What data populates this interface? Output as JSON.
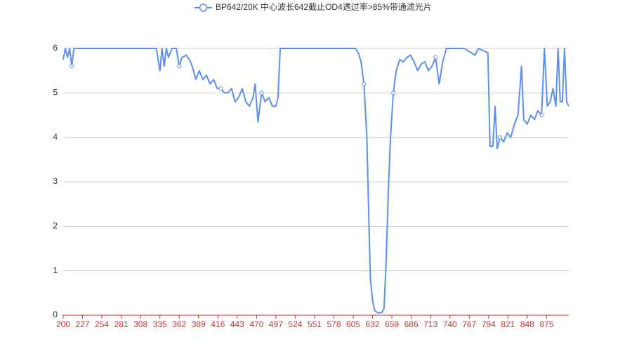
{
  "chart_data": {
    "type": "line",
    "x": [
      200,
      203,
      206,
      209,
      212,
      215,
      220,
      250,
      330,
      335,
      338,
      341,
      344,
      347,
      352,
      358,
      362,
      366,
      372,
      378,
      382,
      385,
      390,
      395,
      400,
      405,
      410,
      415,
      420,
      425,
      430,
      435,
      440,
      445,
      450,
      455,
      460,
      465,
      468,
      472,
      477,
      482,
      487,
      492,
      497,
      500,
      503,
      520,
      560,
      608,
      612,
      616,
      620,
      624,
      627,
      629,
      632,
      635,
      640,
      645,
      648,
      651,
      654,
      657,
      661,
      665,
      670,
      675,
      680,
      685,
      690,
      695,
      700,
      705,
      710,
      715,
      720,
      725,
      730,
      735,
      760,
      775,
      780,
      793,
      796,
      800,
      803,
      806,
      810,
      815,
      820,
      825,
      830,
      835,
      840,
      843,
      848,
      853,
      858,
      863,
      868,
      872,
      876,
      880,
      884,
      888,
      891,
      894,
      897,
      900,
      903,
      906
    ],
    "series": [
      {
        "name": "BP642/20K 中心波长642截止OD4透过率>85%带通滤光片",
        "color": "#5b8ff0",
        "values": [
          5.75,
          6,
          5.8,
          6,
          5.6,
          6,
          6,
          6,
          6,
          5.5,
          6,
          5.6,
          6,
          5.8,
          6,
          6,
          5.6,
          5.8,
          5.85,
          5.7,
          5.5,
          5.3,
          5.5,
          5.3,
          5.4,
          5.2,
          5.3,
          5.1,
          5.1,
          5.0,
          5.0,
          5.1,
          4.8,
          4.9,
          5.1,
          4.8,
          4.7,
          4.9,
          5.2,
          4.35,
          5.0,
          4.8,
          4.9,
          4.7,
          4.7,
          4.9,
          6,
          6,
          6,
          6,
          5.9,
          5.7,
          5.2,
          4.0,
          2.0,
          0.8,
          0.32,
          0.1,
          0.05,
          0.06,
          0.15,
          1.2,
          2.8,
          4.0,
          5.0,
          5.5,
          5.75,
          5.7,
          5.8,
          5.85,
          5.7,
          5.5,
          5.65,
          5.7,
          5.5,
          5.6,
          5.8,
          5.2,
          5.7,
          6,
          6,
          5.85,
          6,
          5.9,
          3.8,
          3.8,
          4.7,
          3.75,
          4.0,
          3.9,
          4.1,
          4.0,
          4.3,
          4.5,
          5.6,
          4.4,
          4.3,
          4.5,
          4.4,
          4.6,
          4.5,
          6,
          4.7,
          4.8,
          5.1,
          4.7,
          6,
          4.8,
          4.8,
          6,
          4.8,
          4.7
        ]
      }
    ],
    "xlim": [
      200,
      906
    ],
    "xticks": [
      200,
      227,
      254,
      281,
      308,
      335,
      362,
      389,
      416,
      443,
      470,
      497,
      524,
      551,
      578,
      605,
      632,
      659,
      686,
      713,
      740,
      767,
      794,
      821,
      848,
      875
    ],
    "ylim": [
      0,
      6
    ],
    "yticks": [
      0,
      1,
      2,
      3,
      4,
      5,
      6
    ],
    "grid": true,
    "legend": "top",
    "axis_color": "#c23531"
  }
}
